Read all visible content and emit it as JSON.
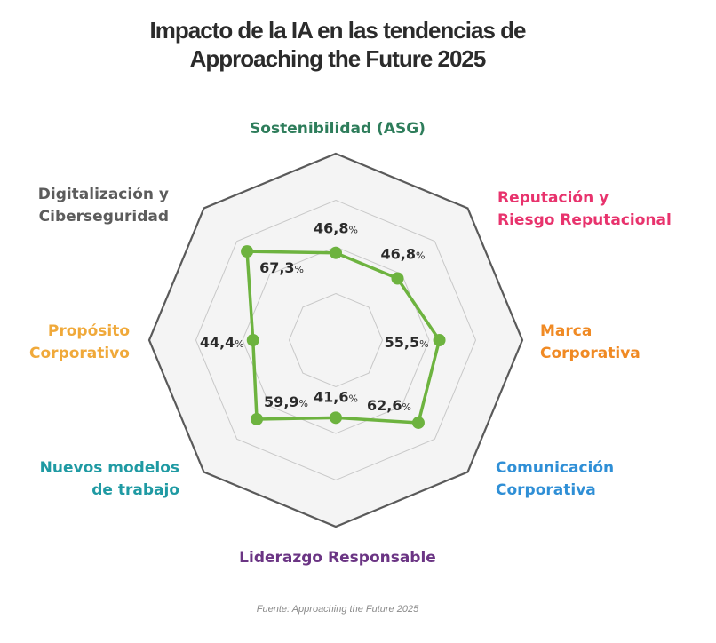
{
  "title": {
    "line1": "Impacto de la IA en las tendencias de",
    "line2": "Approaching the Future 2025"
  },
  "source": "Fuente: Approaching the Future 2025",
  "colors": {
    "series": "#6db33f",
    "outer_border": "#5a5a5a",
    "inner_grid": "#c8c8c8",
    "fill": "#f4f4f4"
  },
  "chart_data": {
    "type": "radar",
    "unit": "%",
    "range": [
      0,
      100
    ],
    "categories": [
      {
        "lines": [
          "Sostenibilidad (ASG)"
        ],
        "color": "#2e7d5b"
      },
      {
        "lines": [
          "Reputación y",
          "Riesgo Reputacional"
        ],
        "color": "#e8336d"
      },
      {
        "lines": [
          "Marca",
          "Corporativa"
        ],
        "color": "#f08a24"
      },
      {
        "lines": [
          "Comunicación",
          "Corporativa"
        ],
        "color": "#2f8fd6"
      },
      {
        "lines": [
          "Liderazgo Responsable"
        ],
        "color": "#6b3584"
      },
      {
        "lines": [
          "Nuevos modelos",
          "de trabajo"
        ],
        "color": "#1f9aa3"
      },
      {
        "lines": [
          "Propósito",
          "Corporativo"
        ],
        "color": "#f0a93a"
      },
      {
        "lines": [
          "Digitalización y",
          "Ciberseguridad"
        ],
        "color": "#5c5c5c"
      }
    ],
    "values": [
      46.8,
      46.8,
      55.5,
      62.6,
      41.6,
      59.9,
      44.4,
      67.3
    ],
    "value_labels": [
      "46,8",
      "46,8",
      "55,5",
      "62,6",
      "41,6",
      "59,9",
      "44,4",
      "67,3"
    ],
    "grid_levels": 4,
    "grid": true,
    "legend": "none"
  }
}
